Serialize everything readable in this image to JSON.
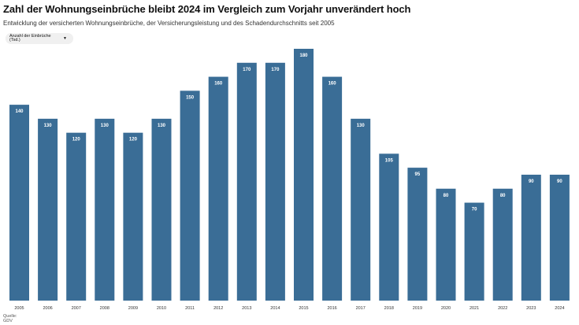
{
  "header": {
    "title": "Zahl der Wohnungseinbrüche bleibt 2024 im Vergleich zum Vorjahr unverändert hoch",
    "subtitle": "Entwicklung der versicherten Wohnungseinbrüche, der Versicherungsleistung und des Schadendurchschnitts seit 2005"
  },
  "selector": {
    "label": "Anzahl der Einbrüche (Tsd.)",
    "icon": "chevron-down-icon"
  },
  "footer": {
    "source_label": "Quelle:",
    "source_name": "GDV"
  },
  "colors": {
    "bar": "#3a6d96",
    "label": "#ffffff"
  },
  "chart_data": {
    "type": "bar",
    "categories": [
      "2005",
      "2006",
      "2007",
      "2008",
      "2009",
      "2010",
      "2011",
      "2012",
      "2013",
      "2014",
      "2015",
      "2016",
      "2017",
      "2018",
      "2019",
      "2020",
      "2021",
      "2022",
      "2023",
      "2024"
    ],
    "values": [
      140,
      130,
      120,
      130,
      120,
      130,
      150,
      160,
      170,
      170,
      180,
      160,
      130,
      105,
      95,
      80,
      70,
      80,
      90,
      90
    ],
    "ylim": [
      0,
      180
    ],
    "grid": false,
    "legend": "none"
  }
}
